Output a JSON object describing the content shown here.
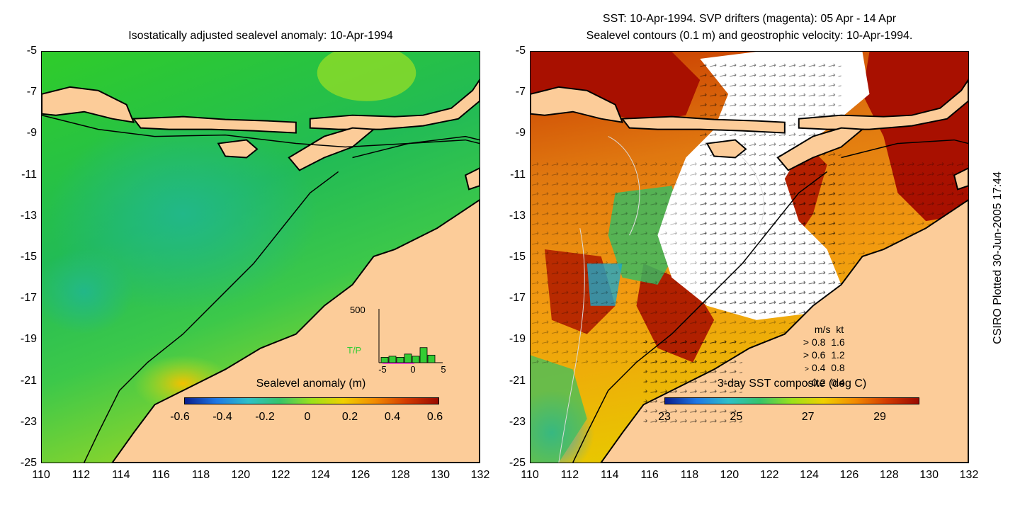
{
  "left_panel": {
    "title": "Isostatically adjusted sealevel anomaly: 10-Apr-1994",
    "colorbar": {
      "title": "Sealevel anomaly (m)",
      "ticks": [
        "-0.6",
        "-0.4",
        "-0.2",
        "0",
        "0.2",
        "0.4",
        "0.6"
      ],
      "colors": [
        "#0a1e8c",
        "#1e78e6",
        "#2ec0c8",
        "#36c46a",
        "#9ce21a",
        "#f0d000",
        "#f28a00",
        "#d23a00",
        "#9a0a00"
      ]
    },
    "histogram": {
      "label": "T/P",
      "ymax_label": "500",
      "x_ticks": [
        "-5",
        "0",
        "5"
      ],
      "bar_heights": [
        0.1,
        0.12,
        0.1,
        0.16,
        0.12,
        0.28,
        0.14
      ],
      "bar_color": "#33cc33"
    }
  },
  "right_panel": {
    "title_line1": "SST: 10-Apr-1994. SVP drifters (magenta): 05 Apr - 14 Apr",
    "title_line2": "Sealevel contours (0.1 m) and geostrophic velocity: 10-Apr-1994.",
    "colorbar": {
      "title": "3-day SST composite (deg C)",
      "ticks": [
        "23",
        "25",
        "27",
        "29"
      ],
      "colors": [
        "#0a1e8c",
        "#1e78e6",
        "#2ec0c8",
        "#36c46a",
        "#9ce21a",
        "#f0d000",
        "#f28a00",
        "#d23a00",
        "#9a0a00"
      ]
    },
    "velocity_legend": {
      "header_ms": "m/s",
      "header_kt": "kt",
      "rows": [
        {
          "ms": "0.8",
          "kt": "1.6"
        },
        {
          "ms": "0.6",
          "kt": "1.2"
        },
        {
          "ms": "0.4",
          "kt": "0.8"
        },
        {
          "ms": "0.2",
          "kt": "0.4"
        }
      ]
    }
  },
  "axes": {
    "y_ticks": [
      "-5",
      "-7",
      "-9",
      "-11",
      "-13",
      "-15",
      "-17",
      "-19",
      "-21",
      "-23",
      "-25"
    ],
    "x_ticks": [
      "110",
      "112",
      "114",
      "116",
      "118",
      "120",
      "122",
      "124",
      "126",
      "128",
      "130",
      "132"
    ],
    "lon_range": [
      110,
      132
    ],
    "lat_range": [
      -25,
      -5
    ]
  },
  "credit": "CSIRO Plotted 30-Jun-2005 17:44",
  "colors": {
    "land": "#fccc99",
    "sea_left": "#33cc22",
    "sea_right_warm": "#b82a00",
    "sea_right_mid": "#f08a10",
    "cloud": "#ffffff"
  }
}
